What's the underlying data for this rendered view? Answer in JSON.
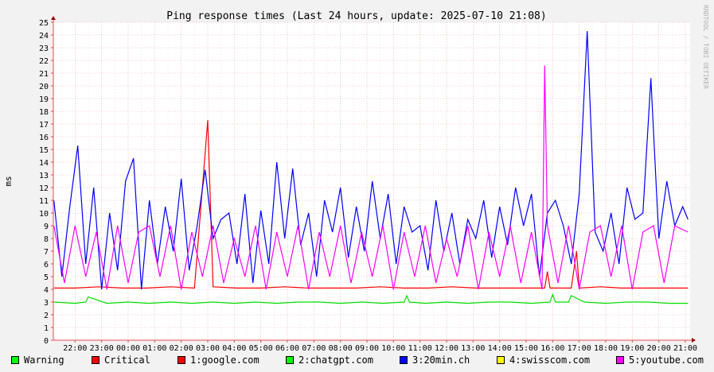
{
  "chart_data": {
    "type": "line",
    "title": "Ping response times (Last 24 hours, update: 2025-07-10 21:08)",
    "ylabel": "ms",
    "watermark": "RRDTOOL / TOBI OETIKER",
    "ylim": [
      0,
      25
    ],
    "y_ticks": [
      "0",
      "1",
      "2",
      "3",
      "4",
      "5",
      "6",
      "7",
      "8",
      "9",
      "10",
      "11",
      "12",
      "13",
      "14",
      "15",
      "16",
      "17",
      "18",
      "19",
      "20",
      "21",
      "22",
      "23",
      "24",
      "25"
    ],
    "x_ticks": [
      "22:00",
      "23:00",
      "00:00",
      "01:00",
      "02:00",
      "03:00",
      "04:00",
      "05:00",
      "06:00",
      "07:00",
      "08:00",
      "09:00",
      "10:00",
      "11:00",
      "12:00",
      "13:00",
      "14:00",
      "15:00",
      "16:00",
      "17:00",
      "18:00",
      "19:00",
      "20:00",
      "21:00"
    ],
    "grid": true,
    "x_start_hours": 21.18,
    "x_span_hours": 24,
    "series": [
      {
        "name": "1:google.com",
        "color": "#ff0000",
        "x": [
          21.2,
          22.0,
          22.9,
          23.8,
          0.7,
          1.6,
          2.5,
          3.0,
          3.2,
          4.1,
          5.0,
          5.9,
          6.8,
          7.7,
          8.6,
          9.5,
          10.4,
          11.3,
          12.2,
          13.1,
          14.0,
          14.9,
          15.7,
          15.8,
          15.9,
          16.7,
          16.9,
          17.0,
          17.8,
          18.6,
          19.4,
          20.2,
          21.1
        ],
        "values": [
          4.1,
          4.1,
          4.2,
          4.1,
          4.1,
          4.2,
          4.1,
          17.3,
          4.2,
          4.1,
          4.1,
          4.2,
          4.1,
          4.1,
          4.1,
          4.2,
          4.1,
          4.1,
          4.2,
          4.1,
          4.1,
          4.1,
          4.1,
          5.4,
          4.1,
          4.1,
          7.0,
          4.1,
          4.2,
          4.1,
          4.1,
          4.1,
          4.1
        ]
      },
      {
        "name": "2:chatgpt.com",
        "color": "#00e000",
        "x": [
          21.2,
          22.0,
          22.4,
          22.5,
          23.2,
          0.0,
          0.8,
          1.6,
          2.4,
          3.2,
          4.0,
          4.8,
          5.6,
          6.4,
          7.2,
          8.0,
          8.8,
          9.6,
          10.4,
          10.5,
          10.6,
          11.2,
          12.0,
          12.8,
          13.6,
          14.4,
          15.2,
          15.9,
          16.0,
          16.1,
          16.6,
          16.7,
          17.2,
          18.0,
          18.8,
          19.6,
          20.4,
          21.1
        ],
        "values": [
          3.0,
          2.9,
          3.0,
          3.4,
          2.9,
          3.0,
          2.9,
          3.0,
          2.9,
          3.0,
          2.9,
          3.0,
          2.9,
          3.0,
          3.0,
          2.9,
          3.0,
          2.9,
          3.0,
          3.5,
          3.0,
          2.9,
          3.0,
          2.9,
          3.0,
          3.0,
          2.9,
          3.0,
          3.6,
          3.0,
          3.0,
          3.5,
          3.0,
          2.9,
          3.0,
          3.0,
          2.9,
          2.9
        ]
      },
      {
        "name": "3:20min.ch",
        "color": "#0000ff",
        "x": [
          21.2,
          21.5,
          21.8,
          22.1,
          22.4,
          22.7,
          23.0,
          23.3,
          23.6,
          23.9,
          0.2,
          0.5,
          0.8,
          1.1,
          1.4,
          1.7,
          2.0,
          2.3,
          2.6,
          2.9,
          3.2,
          3.5,
          3.8,
          4.1,
          4.4,
          4.7,
          5.0,
          5.3,
          5.6,
          5.9,
          6.2,
          6.5,
          6.8,
          7.1,
          7.4,
          7.7,
          8.0,
          8.3,
          8.6,
          8.9,
          9.2,
          9.5,
          9.8,
          10.1,
          10.4,
          10.7,
          11.0,
          11.3,
          11.6,
          11.9,
          12.2,
          12.5,
          12.8,
          13.1,
          13.4,
          13.7,
          14.0,
          14.3,
          14.6,
          14.9,
          15.2,
          15.5,
          15.8,
          16.1,
          16.4,
          16.7,
          17.0,
          17.3,
          17.6,
          17.9,
          18.2,
          18.5,
          18.8,
          19.1,
          19.4,
          19.7,
          20.0,
          20.3,
          20.6,
          20.9,
          21.1
        ],
        "values": [
          11.0,
          5.0,
          10.5,
          15.3,
          6.0,
          12.0,
          4.0,
          10.0,
          5.5,
          12.5,
          14.3,
          4.0,
          11.0,
          6.0,
          10.5,
          7.0,
          12.7,
          5.5,
          9.0,
          13.4,
          8.0,
          9.5,
          10.0,
          6.0,
          11.5,
          4.5,
          10.2,
          6.0,
          14.0,
          8.0,
          13.5,
          7.5,
          10.0,
          5.0,
          11.0,
          8.5,
          12.0,
          6.5,
          10.5,
          7.0,
          12.5,
          8.0,
          11.5,
          6.0,
          10.5,
          8.5,
          9.0,
          5.5,
          11.0,
          7.0,
          10.0,
          6.0,
          9.5,
          8.0,
          11.0,
          6.5,
          10.5,
          7.5,
          12.0,
          9.0,
          11.5,
          5.0,
          10.0,
          11.0,
          9.0,
          6.0,
          11.5,
          24.3,
          8.5,
          7.0,
          10.0,
          6.0,
          12.0,
          9.5,
          10.0,
          20.6,
          8.0,
          12.5,
          9.0,
          10.5,
          9.5
        ]
      },
      {
        "name": "4:swisscom.com",
        "color": "#ffff00",
        "x": [],
        "values": []
      },
      {
        "name": "5:youtube.com",
        "color": "#ff00ff",
        "x": [
          21.2,
          21.6,
          22.0,
          22.4,
          22.8,
          23.2,
          23.6,
          0.0,
          0.4,
          0.8,
          1.2,
          1.6,
          2.0,
          2.4,
          2.8,
          3.2,
          3.6,
          4.0,
          4.4,
          4.8,
          5.2,
          5.6,
          6.0,
          6.4,
          6.8,
          7.2,
          7.6,
          8.0,
          8.4,
          8.8,
          9.2,
          9.6,
          10.0,
          10.4,
          10.8,
          11.2,
          11.6,
          12.0,
          12.4,
          12.8,
          13.2,
          13.6,
          14.0,
          14.4,
          14.8,
          15.2,
          15.6,
          15.7,
          15.8,
          16.2,
          16.6,
          17.0,
          17.4,
          17.8,
          18.2,
          18.6,
          19.0,
          19.4,
          19.8,
          20.2,
          20.6,
          21.1
        ],
        "values": [
          9.0,
          4.5,
          9.0,
          5.0,
          8.5,
          4.0,
          9.0,
          4.5,
          8.5,
          9.0,
          5.0,
          9.0,
          4.0,
          8.5,
          5.0,
          9.0,
          4.5,
          8.0,
          5.0,
          9.0,
          4.0,
          8.5,
          5.0,
          9.0,
          4.0,
          8.5,
          5.0,
          9.0,
          4.5,
          8.5,
          5.0,
          9.0,
          4.0,
          8.5,
          5.0,
          9.0,
          4.5,
          8.0,
          5.0,
          9.0,
          4.0,
          8.5,
          5.0,
          9.0,
          4.5,
          8.5,
          4.0,
          21.6,
          9.0,
          4.5,
          9.0,
          4.0,
          8.5,
          9.0,
          5.0,
          9.0,
          4.0,
          8.5,
          9.0,
          4.5,
          9.0,
          8.5
        ]
      }
    ],
    "thresholds": {
      "warning_color": "#00ff00",
      "critical_color": "#ff0000"
    }
  },
  "legend": {
    "warning": "Warning",
    "critical": "Critical",
    "s1": "1:google.com",
    "s2": "2:chatgpt.com",
    "s3": "3:20min.ch",
    "s4": "4:swisscom.com",
    "s5": "5:youtube.com"
  }
}
